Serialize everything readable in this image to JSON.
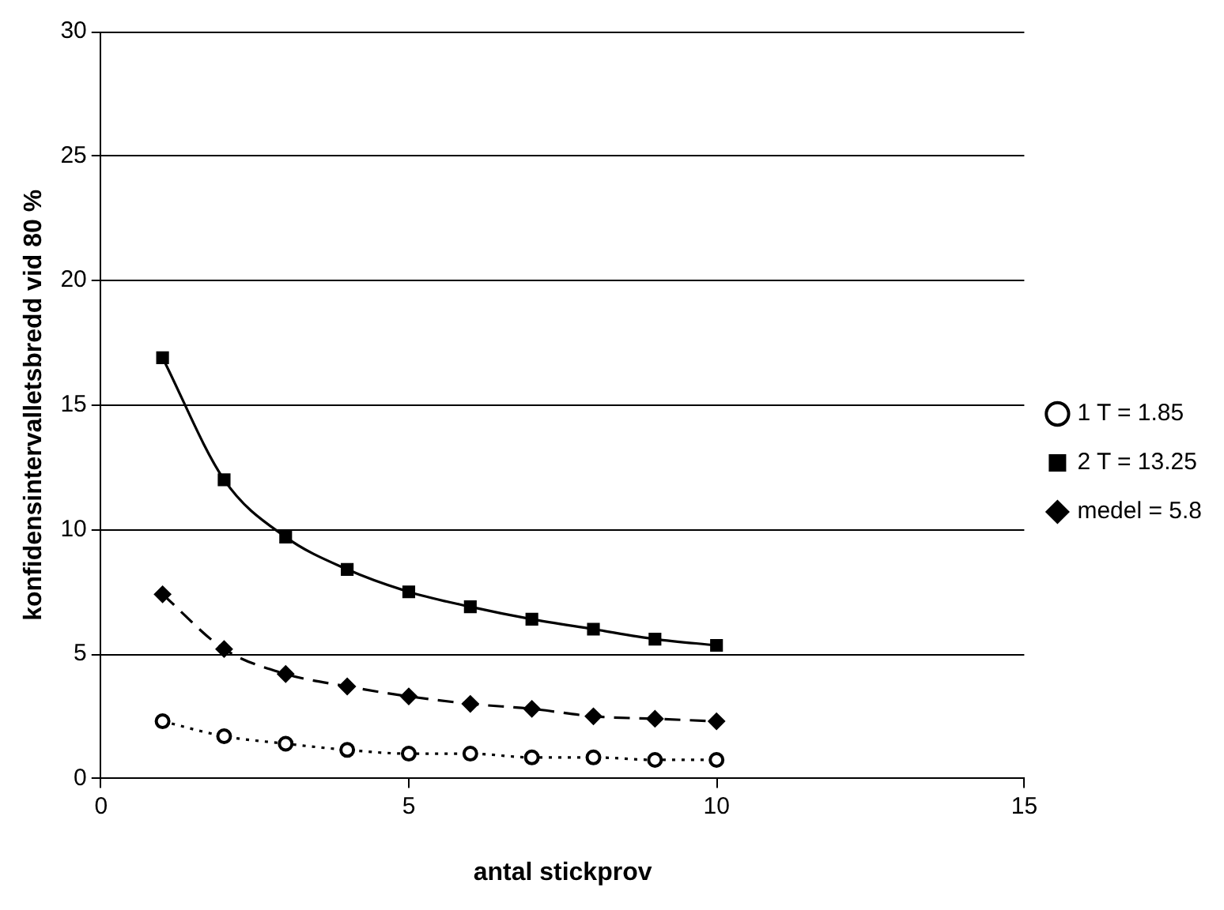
{
  "chart_data": {
    "type": "line",
    "xlabel": "antal stickprov",
    "ylabel": "konfidensintervalletsbredd vid 80 %",
    "x": [
      1,
      2,
      3,
      4,
      5,
      6,
      7,
      8,
      9,
      10
    ],
    "xlim": [
      0,
      15
    ],
    "xticks": [
      0,
      5,
      10,
      15
    ],
    "ylim": [
      0,
      30
    ],
    "yticks": [
      0,
      5,
      10,
      15,
      20,
      25,
      30
    ],
    "grid": "y",
    "legend": "right",
    "series": [
      {
        "name": "1 T = 1.85",
        "color": "#000000",
        "marker": "circle",
        "line_style": "dotted",
        "values": [
          2.3,
          1.7,
          1.4,
          1.15,
          1.0,
          1.0,
          0.85,
          0.85,
          0.75,
          0.75
        ]
      },
      {
        "name": "2 T = 13.25",
        "color": "#000000",
        "marker": "square",
        "line_style": "solid",
        "values": [
          16.9,
          12.0,
          9.7,
          8.4,
          7.5,
          6.9,
          6.4,
          6.0,
          5.6,
          5.35
        ]
      },
      {
        "name": "medel = 5.8",
        "color": "#000000",
        "marker": "diamond",
        "line_style": "dashed",
        "values": [
          7.4,
          5.2,
          4.2,
          3.7,
          3.3,
          3.0,
          2.8,
          2.5,
          2.4,
          2.3
        ]
      }
    ]
  }
}
